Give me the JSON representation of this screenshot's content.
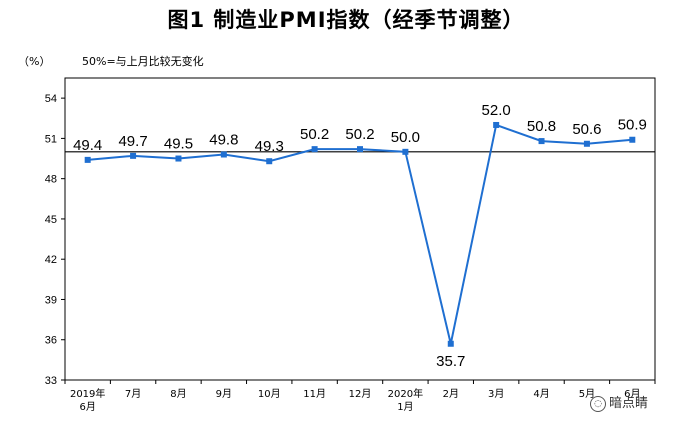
{
  "chart_data": {
    "type": "line",
    "title": "图1  制造业PMI指数（经季节调整）",
    "ylabel": "（%）",
    "note": "50%=与上月比较无变化",
    "categories": [
      [
        "2019年",
        "6月"
      ],
      [
        "7月"
      ],
      [
        "8月"
      ],
      [
        "9月"
      ],
      [
        "10月"
      ],
      [
        "11月"
      ],
      [
        "12月"
      ],
      [
        "2020年",
        "1月"
      ],
      [
        "2月"
      ],
      [
        "3月"
      ],
      [
        "4月"
      ],
      [
        "5月"
      ],
      [
        "6月"
      ]
    ],
    "values": [
      49.4,
      49.7,
      49.5,
      49.8,
      49.3,
      50.2,
      50.2,
      50.0,
      35.7,
      52.0,
      50.8,
      50.6,
      50.9
    ],
    "data_labels": [
      "49.4",
      "49.7",
      "49.5",
      "49.8",
      "49.3",
      "50.2",
      "50.2",
      "50.0",
      "35.7",
      "52.0",
      "50.8",
      "50.6",
      "50.9"
    ],
    "yticks": [
      33,
      36,
      39,
      42,
      45,
      48,
      51,
      54
    ],
    "ylim": [
      33,
      55.5
    ],
    "reference_line": 50,
    "grid": false,
    "legend": "none",
    "line_color": "#1f6fd1"
  },
  "watermark": "暗点睛"
}
